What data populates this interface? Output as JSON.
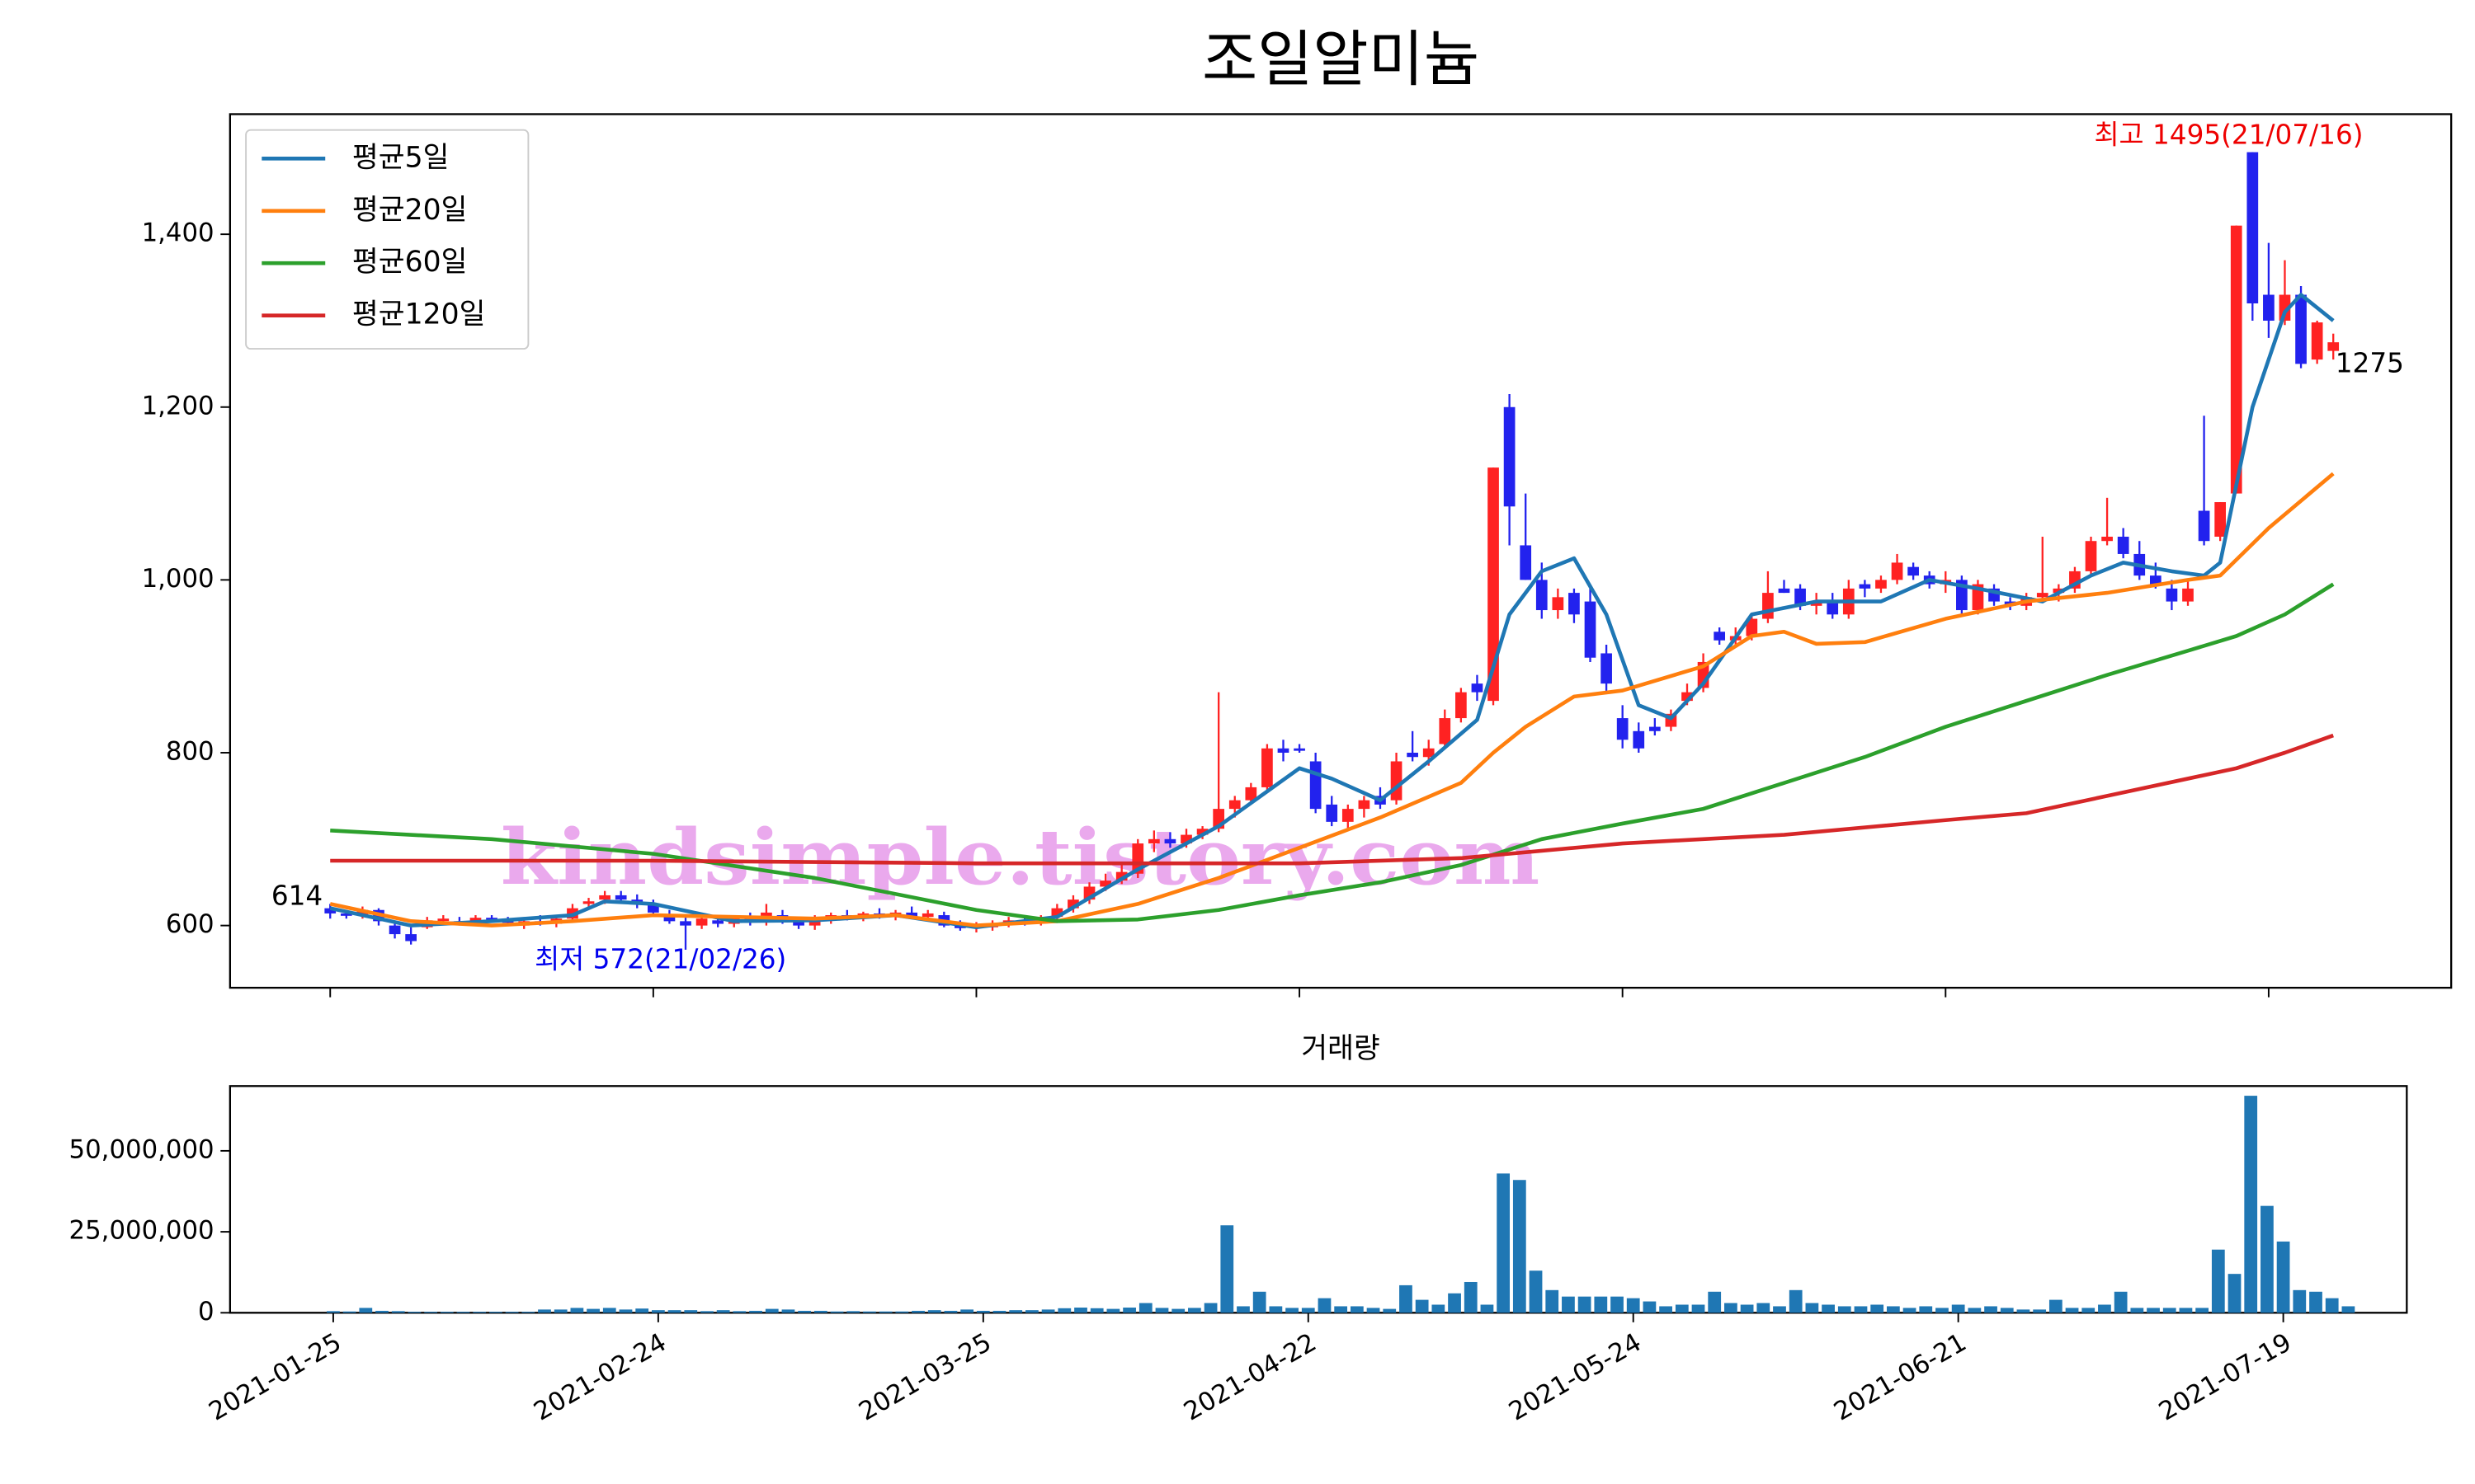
{
  "chart_data": {
    "type": "candlestick",
    "title": "조일알미늄",
    "volume_title": "거래량",
    "annotations": [
      "614",
      "최저 572(21/02/26)",
      "최고 1495(21/07/16)",
      "1275"
    ],
    "watermark": "kindsimple.tistory.com",
    "up_color": "#ff2222",
    "down_color": "#2222ee",
    "volume_color": "#1f77b4",
    "xlim": [
      -6.2,
      131.3
    ],
    "volume_xlim": [
      -6.35,
      127.6
    ],
    "xticks": [
      {
        "value": 0,
        "label": "2021-01-25"
      },
      {
        "value": 20,
        "label": "2021-02-24"
      },
      {
        "value": 40,
        "label": "2021-03-25"
      },
      {
        "value": 60,
        "label": "2021-04-22"
      },
      {
        "value": 80,
        "label": "2021-05-24"
      },
      {
        "value": 100,
        "label": "2021-06-21"
      },
      {
        "value": 120,
        "label": "2021-07-19"
      }
    ],
    "ylim": [
      528,
      1539
    ],
    "yticks": [
      600,
      800,
      {
        "value": 1000,
        "label": "1,000"
      },
      {
        "value": 1200,
        "label": "1,200"
      },
      {
        "value": 1400,
        "label": "1,400"
      }
    ],
    "volume_ylim": [
      0,
      70000000
    ],
    "volume_yticks": [
      0,
      {
        "value": 25000000,
        "label": "25,000,000"
      },
      {
        "value": 50000000,
        "label": "50,000,000"
      }
    ],
    "open": [
      620,
      614,
      612,
      618,
      600,
      590,
      598,
      606,
      605,
      603,
      609,
      606,
      600,
      605,
      602,
      608,
      625,
      630,
      635,
      630,
      625,
      612,
      605,
      600,
      606,
      602,
      610,
      605,
      612,
      606,
      600,
      608,
      612,
      610,
      614,
      612,
      615,
      610,
      612,
      600,
      597,
      598,
      602,
      606,
      604,
      610,
      620,
      630,
      645,
      652,
      660,
      695,
      700,
      695,
      705,
      712,
      735,
      745,
      760,
      805,
      805,
      790,
      740,
      720,
      735,
      750,
      745,
      800,
      795,
      810,
      840,
      880,
      860,
      1200,
      1040,
      1000,
      965,
      985,
      975,
      915,
      840,
      825,
      830,
      830,
      860,
      875,
      940,
      930,
      935,
      955,
      990,
      990,
      970,
      975,
      960,
      995,
      990,
      1000,
      1015,
      1005,
      995,
      1000,
      965,
      990,
      975,
      970,
      980,
      985,
      990,
      1010,
      1045,
      1050,
      1030,
      1005,
      990,
      975,
      1080,
      1050,
      1100,
      1495,
      1330,
      1300,
      1330,
      1255,
      1265
    ],
    "high": [
      625,
      618,
      622,
      620,
      603,
      598,
      610,
      612,
      610,
      612,
      612,
      610,
      608,
      612,
      610,
      625,
      632,
      640,
      640,
      636,
      630,
      618,
      610,
      612,
      612,
      612,
      615,
      625,
      618,
      610,
      612,
      615,
      618,
      616,
      620,
      618,
      622,
      618,
      616,
      606,
      604,
      606,
      610,
      612,
      612,
      625,
      635,
      650,
      660,
      670,
      700,
      710,
      708,
      712,
      715,
      870,
      750,
      765,
      810,
      815,
      810,
      800,
      750,
      740,
      750,
      760,
      800,
      825,
      815,
      850,
      875,
      890,
      1130,
      1215,
      1100,
      1020,
      990,
      990,
      990,
      925,
      855,
      835,
      840,
      850,
      880,
      915,
      945,
      945,
      960,
      1010,
      1000,
      995,
      985,
      985,
      1000,
      1000,
      1005,
      1030,
      1020,
      1010,
      1010,
      1005,
      1000,
      995,
      980,
      985,
      1050,
      995,
      1015,
      1050,
      1095,
      1060,
      1045,
      1020,
      1000,
      1000,
      1190,
      1090,
      1410,
      1495,
      1390,
      1370,
      1340,
      1300,
      1285
    ],
    "low": [
      608,
      608,
      608,
      600,
      585,
      578,
      596,
      602,
      600,
      600,
      603,
      600,
      596,
      600,
      598,
      605,
      620,
      625,
      628,
      620,
      612,
      602,
      572,
      596,
      598,
      598,
      600,
      600,
      602,
      596,
      595,
      602,
      606,
      605,
      608,
      606,
      608,
      605,
      598,
      594,
      592,
      594,
      598,
      600,
      600,
      606,
      615,
      625,
      640,
      648,
      655,
      685,
      690,
      690,
      700,
      708,
      725,
      740,
      755,
      790,
      800,
      730,
      715,
      712,
      725,
      735,
      740,
      790,
      785,
      805,
      835,
      860,
      855,
      1040,
      1000,
      955,
      955,
      950,
      905,
      870,
      805,
      800,
      820,
      825,
      855,
      870,
      925,
      925,
      930,
      950,
      985,
      965,
      960,
      955,
      955,
      980,
      985,
      995,
      1000,
      990,
      985,
      960,
      960,
      970,
      965,
      965,
      975,
      975,
      985,
      1005,
      1040,
      1025,
      1000,
      990,
      965,
      970,
      1040,
      1045,
      1100,
      1300,
      1280,
      1295,
      1245,
      1250,
      1255
    ],
    "close": [
      614,
      612,
      618,
      605,
      590,
      582,
      606,
      608,
      603,
      609,
      606,
      604,
      605,
      602,
      608,
      620,
      628,
      635,
      630,
      625,
      615,
      605,
      600,
      608,
      602,
      610,
      605,
      615,
      606,
      600,
      608,
      612,
      610,
      614,
      612,
      615,
      610,
      614,
      600,
      597,
      600,
      602,
      606,
      604,
      610,
      620,
      630,
      645,
      652,
      662,
      695,
      700,
      695,
      705,
      712,
      735,
      745,
      760,
      805,
      800,
      805,
      735,
      720,
      735,
      745,
      740,
      790,
      795,
      805,
      840,
      870,
      870,
      1130,
      1085,
      1000,
      965,
      980,
      960,
      910,
      880,
      815,
      805,
      825,
      845,
      870,
      905,
      930,
      935,
      955,
      985,
      985,
      970,
      975,
      960,
      990,
      990,
      1000,
      1020,
      1005,
      995,
      1000,
      965,
      995,
      975,
      970,
      980,
      985,
      990,
      1010,
      1045,
      1050,
      1030,
      1005,
      995,
      975,
      990,
      1045,
      1090,
      1410,
      1320,
      1300,
      1330,
      1250,
      1298,
      1275
    ],
    "volume": [
      500000,
      400000,
      1500000,
      600000,
      500000,
      300000,
      300000,
      300000,
      300000,
      300000,
      300000,
      300000,
      300000,
      1000000,
      1000000,
      1500000,
      1200000,
      1500000,
      1000000,
      1300000,
      800000,
      800000,
      800000,
      500000,
      800000,
      500000,
      600000,
      1200000,
      1000000,
      600000,
      600000,
      400000,
      500000,
      400000,
      400000,
      400000,
      600000,
      800000,
      600000,
      1000000,
      600000,
      600000,
      800000,
      800000,
      1000000,
      1400000,
      1600000,
      1400000,
      1200000,
      1600000,
      3000000,
      1500000,
      1200000,
      1500000,
      3000000,
      27000000,
      2000000,
      6500000,
      2000000,
      1500000,
      1500000,
      4500000,
      2000000,
      2000000,
      1500000,
      1200000,
      8500000,
      4000000,
      2500000,
      6000000,
      9500000,
      2500000,
      43000000,
      41000000,
      13000000,
      7000000,
      5000000,
      5000000,
      5000000,
      5000000,
      4500000,
      3500000,
      2000000,
      2500000,
      2500000,
      6500000,
      3000000,
      2500000,
      3000000,
      2000000,
      7000000,
      3000000,
      2500000,
      2000000,
      2000000,
      2500000,
      2000000,
      1500000,
      2000000,
      1500000,
      2500000,
      1500000,
      2000000,
      1500000,
      1000000,
      1000000,
      4000000,
      1500000,
      1500000,
      2500000,
      6500000,
      1500000,
      1500000,
      1500000,
      1500000,
      1500000,
      19500000,
      12000000,
      67000000,
      33000000,
      22000000,
      7000000,
      6500000,
      4500000,
      2000000
    ],
    "series": [
      {
        "name": "평균5일",
        "color": "#1f77b4",
        "x": [
          0,
          5,
          10,
          15,
          17,
          20,
          25,
          30,
          35,
          40,
          45,
          50,
          55,
          60,
          62,
          65,
          68,
          71,
          73,
          75,
          77,
          79,
          81,
          83,
          85,
          88,
          92,
          96,
          99,
          102,
          106,
          109,
          111,
          114,
          116,
          117,
          118,
          119,
          121,
          122,
          124
        ],
        "values": [
          620,
          600,
          605,
          612,
          628,
          625,
          605,
          606,
          612,
          598,
          610,
          665,
          715,
          782,
          770,
          745,
          790,
          838,
          960,
          1010,
          1025,
          960,
          855,
          840,
          880,
          960,
          975,
          975,
          1000,
          990,
          975,
          1005,
          1020,
          1010,
          1005,
          1020,
          1110,
          1200,
          1310,
          1330,
          1300
        ]
      },
      {
        "name": "평균20일",
        "color": "#ff7f0e",
        "x": [
          0,
          5,
          10,
          15,
          20,
          25,
          30,
          35,
          40,
          45,
          50,
          55,
          60,
          65,
          70,
          72,
          74,
          77,
          80,
          85,
          88,
          90,
          92,
          95,
          100,
          105,
          110,
          115,
          117,
          120,
          124
        ],
        "values": [
          625,
          605,
          600,
          605,
          612,
          610,
          608,
          612,
          600,
          605,
          625,
          655,
          690,
          725,
          765,
          800,
          830,
          865,
          872,
          900,
          935,
          940,
          926,
          928,
          955,
          975,
          985,
          1000,
          1005,
          1060,
          1123
        ]
      },
      {
        "name": "평균60일",
        "color": "#2ca02c",
        "x": [
          0,
          10,
          20,
          30,
          40,
          45,
          50,
          55,
          60,
          65,
          70,
          75,
          80,
          85,
          90,
          95,
          100,
          105,
          110,
          115,
          118,
          121,
          124
        ],
        "values": [
          710,
          700,
          683,
          655,
          618,
          605,
          607,
          618,
          635,
          650,
          670,
          700,
          718,
          735,
          765,
          795,
          830,
          860,
          890,
          918,
          935,
          960,
          995
        ]
      },
      {
        "name": "평균120일",
        "color": "#d62728",
        "x": [
          0,
          20,
          40,
          60,
          70,
          80,
          90,
          100,
          105,
          110,
          115,
          118,
          121,
          124
        ],
        "values": [
          675,
          675,
          672,
          672,
          678,
          695,
          705,
          722,
          730,
          750,
          770,
          782,
          800,
          820
        ]
      }
    ]
  }
}
